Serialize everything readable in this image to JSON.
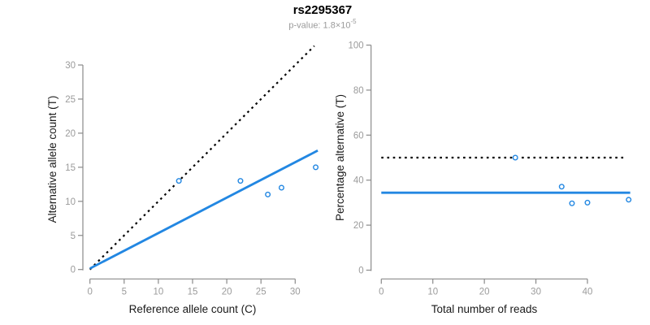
{
  "header": {
    "title": "rs2295367",
    "pvalue_text": "p-value: 1.8×10",
    "pvalue_exponent": "-5"
  },
  "colors": {
    "accent_blue": "#2287E2",
    "dotted_black": "#000000",
    "axis_line": "#8a8a8a",
    "tick_label": "#9b9b9b",
    "axis_label": "#1a1a1a",
    "title": "#000000",
    "subtitle": "#9a9a9a",
    "background": "#ffffff"
  },
  "chart_data": [
    {
      "type": "scatter",
      "title": "rs2295367",
      "subtitle": "p-value: 1.8×10^-5",
      "panel": "left",
      "xlabel": "Reference allele count (C)",
      "ylabel": "Alternative allele count (T)",
      "xlim": [
        0,
        33.5
      ],
      "ylim": [
        0,
        33.5
      ],
      "xticks": [
        0,
        5,
        10,
        15,
        20,
        25,
        30
      ],
      "yticks": [
        0,
        5,
        10,
        15,
        20,
        25,
        30
      ],
      "grid": false,
      "legend": "none",
      "points": [
        [
          13,
          13
        ],
        [
          22,
          13
        ],
        [
          26,
          11
        ],
        [
          28,
          12
        ],
        [
          33,
          15
        ]
      ],
      "lines": [
        {
          "name": "identity-line",
          "style": "dotted",
          "color": "#000000",
          "x": [
            0,
            32.8
          ],
          "y": [
            0,
            32.8
          ]
        },
        {
          "name": "fit-line",
          "style": "solid",
          "color": "#2287E2",
          "x": [
            0,
            33.3
          ],
          "y": [
            0.15,
            17.45
          ]
        }
      ]
    },
    {
      "type": "scatter",
      "panel": "right",
      "xlabel": "Total number of reads",
      "ylabel": "Percentage alternative (T)",
      "xlim": [
        0,
        48.5
      ],
      "ylim": [
        0,
        100
      ],
      "xticks": [
        0,
        10,
        20,
        30,
        40
      ],
      "yticks": [
        0,
        20,
        40,
        60,
        80,
        100
      ],
      "grid": false,
      "legend": "none",
      "points": [
        [
          26,
          50
        ],
        [
          35,
          37.1
        ],
        [
          37,
          29.7
        ],
        [
          40,
          30
        ],
        [
          48,
          31.3
        ]
      ],
      "lines": [
        {
          "name": "expected-50pct-line",
          "style": "dotted",
          "color": "#000000",
          "x": [
            0,
            47.5
          ],
          "y": [
            50,
            50
          ]
        },
        {
          "name": "mean-percentage-line",
          "style": "solid",
          "color": "#2287E2",
          "x": [
            0,
            48.3
          ],
          "y": [
            34.4,
            34.4
          ]
        }
      ]
    }
  ]
}
